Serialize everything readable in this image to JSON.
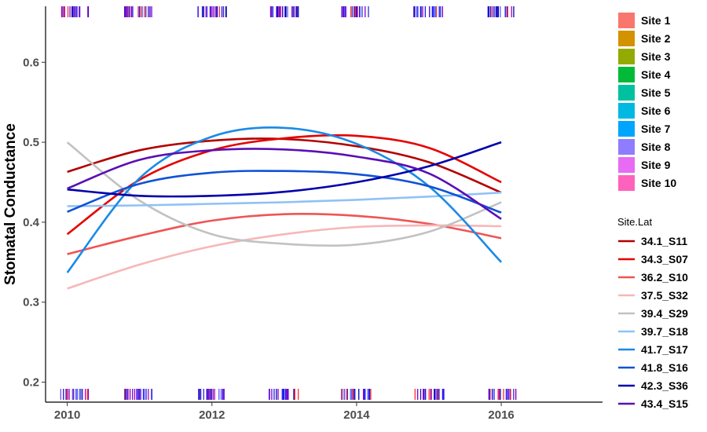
{
  "chart_data": {
    "type": "line",
    "title": "",
    "xlabel": "",
    "ylabel": "Stomatal Conductance",
    "xlim": [
      2009.7,
      2017.4
    ],
    "ylim": [
      0.175,
      0.67
    ],
    "xticks": [
      2010,
      2012,
      2014,
      2016
    ],
    "yticks": [
      0.2,
      0.3,
      0.4,
      0.5,
      0.6
    ],
    "grid": false,
    "legend_position": "right",
    "site_legend": {
      "title": "",
      "entries": [
        {
          "name": "Site 1",
          "color": "#F8766D"
        },
        {
          "name": "Site 2",
          "color": "#D39200"
        },
        {
          "name": "Site 3",
          "color": "#93AA00"
        },
        {
          "name": "Site 4",
          "color": "#00BA38"
        },
        {
          "name": "Site 5",
          "color": "#00C19F"
        },
        {
          "name": "Site 6",
          "color": "#00B9E3"
        },
        {
          "name": "Site 7",
          "color": "#00A5FF"
        },
        {
          "name": "Site 8",
          "color": "#8F7CFF"
        },
        {
          "name": "Site 9",
          "color": "#E76BF3"
        },
        {
          "name": "Site 10",
          "color": "#FF62BC"
        }
      ]
    },
    "series_legend_title": "Site.Lat",
    "x": [
      2010,
      2011,
      2012,
      2013,
      2014,
      2015,
      2016
    ],
    "series": [
      {
        "name": "34.1_S11",
        "color": "#b30000",
        "values": [
          0.463,
          0.49,
          0.502,
          0.504,
          0.495,
          0.475,
          0.437
        ]
      },
      {
        "name": "34.3_S07",
        "color": "#e60000",
        "values": [
          0.385,
          0.453,
          0.49,
          0.505,
          0.508,
          0.493,
          0.45
        ]
      },
      {
        "name": "36.2_S10",
        "color": "#f05454",
        "values": [
          0.36,
          0.383,
          0.402,
          0.41,
          0.408,
          0.398,
          0.38
        ]
      },
      {
        "name": "37.5_S32",
        "color": "#f7b7b7",
        "values": [
          0.317,
          0.347,
          0.37,
          0.385,
          0.394,
          0.396,
          0.395
        ]
      },
      {
        "name": "39.4_S29",
        "color": "#c2c2c2",
        "values": [
          0.5,
          0.427,
          0.385,
          0.373,
          0.372,
          0.388,
          0.425
        ]
      },
      {
        "name": "39.7_S18",
        "color": "#8fc2f5",
        "values": [
          0.42,
          0.421,
          0.423,
          0.425,
          0.428,
          0.432,
          0.437
        ]
      },
      {
        "name": "41.7_S17",
        "color": "#1a8ae6",
        "values": [
          0.337,
          0.455,
          0.507,
          0.518,
          0.498,
          0.445,
          0.35
        ]
      },
      {
        "name": "41.8_S16",
        "color": "#0f52d6",
        "values": [
          0.413,
          0.448,
          0.462,
          0.464,
          0.46,
          0.445,
          0.412
        ]
      },
      {
        "name": "42.3_S36",
        "color": "#0000aa",
        "values": [
          0.441,
          0.433,
          0.433,
          0.438,
          0.45,
          0.47,
          0.5
        ]
      },
      {
        "name": "43.4_S15",
        "color": "#5a0fb4",
        "values": [
          0.442,
          0.478,
          0.49,
          0.491,
          0.482,
          0.461,
          0.404
        ]
      }
    ],
    "rug_clusters": [
      2010.1,
      2011.0,
      2012.0,
      2013.0,
      2014.0,
      2015.0,
      2016.0
    ],
    "rug_colors": [
      "#1a1aff",
      "#3a00c8",
      "#7a00d0",
      "#5a5aff",
      "#0000b0",
      "#2f2fd0",
      "#ff3030",
      "#b000b0"
    ]
  }
}
